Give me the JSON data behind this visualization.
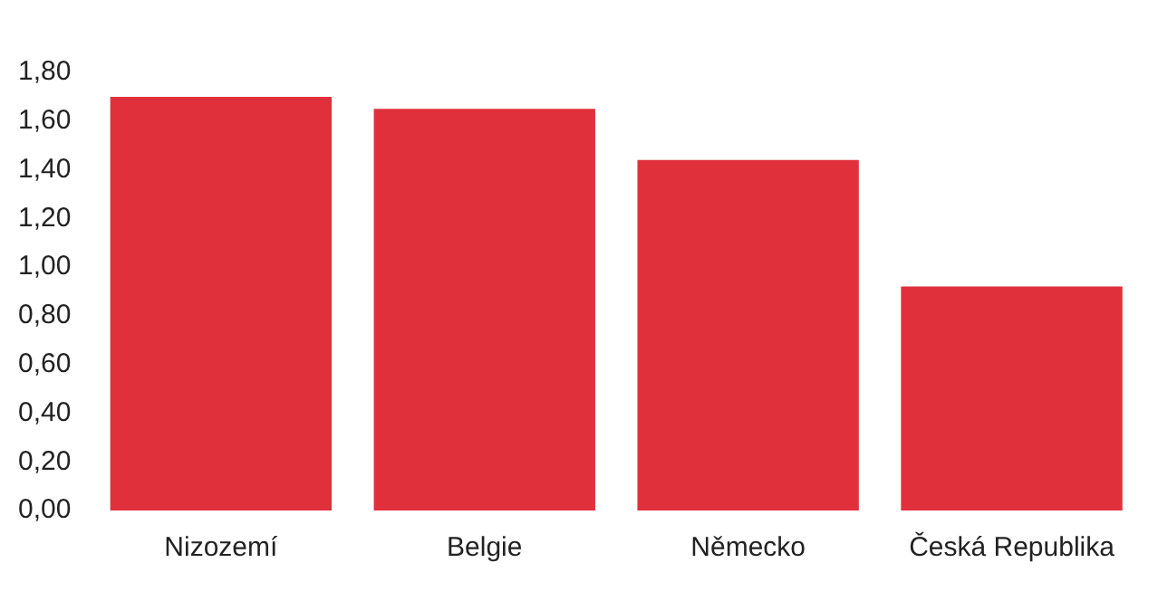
{
  "chart_data": {
    "type": "bar",
    "categories": [
      "Nizozemí",
      "Belgie",
      "Německo",
      "Česká Republika"
    ],
    "values": [
      1.7,
      1.65,
      1.44,
      0.92
    ],
    "color": "#e0303c",
    "ylim": [
      0,
      1.8
    ],
    "yticks": [
      {
        "value": 0,
        "label": "0,00"
      },
      {
        "value": 0.2,
        "label": "0,20"
      },
      {
        "value": 0.4,
        "label": "0,40"
      },
      {
        "value": 0.6,
        "label": "0,60"
      },
      {
        "value": 0.8,
        "label": "0,80"
      },
      {
        "value": 1.0,
        "label": "1,00"
      },
      {
        "value": 1.2,
        "label": "1,20"
      },
      {
        "value": 1.4,
        "label": "1,40"
      },
      {
        "value": 1.6,
        "label": "1,60"
      },
      {
        "value": 1.8,
        "label": "1,80"
      }
    ],
    "grid": false,
    "legend": false
  }
}
